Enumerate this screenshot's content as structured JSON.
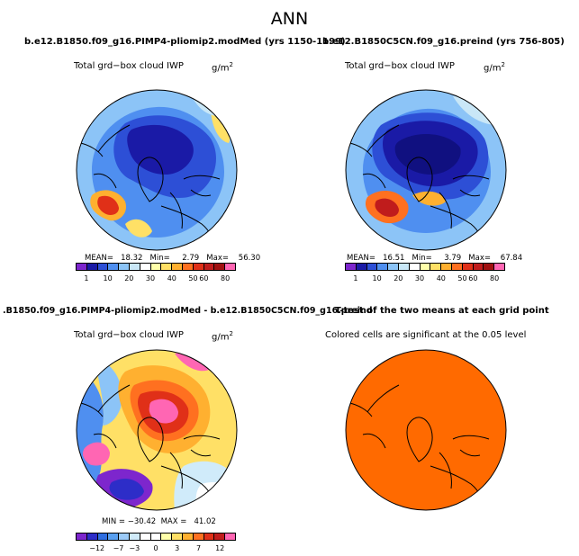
{
  "title": "ANN",
  "colors": {
    "continent_outline": "#000000",
    "significance_fill": "#ff6a00"
  },
  "panels": {
    "top_left": {
      "title": "b.e12.B1850.f09_g16.PIMP4-pliomip2.modMed (yrs 1150-1199)",
      "field": "Total grd−box cloud IWP",
      "units": "g/m",
      "units_exp": "2",
      "stats": "MEAN=   18.32   Min=     2.79   Max=    56.30"
    },
    "top_right": {
      "title": "b.e12.B1850C5CN.f09_g16.preind (yrs 756-805)",
      "field": "Total grd−box cloud IWP",
      "units": "g/m",
      "units_exp": "2",
      "stats": "MEAN=   16.51   Min=     3.79   Max=    67.84"
    },
    "bottom_left": {
      "title": ".B1850.f09_g16.PIMP4-pliomip2.modMed - b.e12.B1850C5CN.f09_g16.preind",
      "field": "Total grd−box cloud IWP",
      "units": "g/m",
      "units_exp": "2",
      "stats": "MIN = −30.42  MAX =   41.02"
    },
    "bottom_right": {
      "title": "T-test of the two means at each grid point",
      "field": "Colored cells are significant at the 0.05 level"
    }
  },
  "colorbars": {
    "absolute": {
      "colors": [
        "#7d26cd",
        "#1a1aa6",
        "#2d4fd6",
        "#4f8ff0",
        "#8cc4f7",
        "#c9e7f7",
        "#ffffff",
        "#ffffaa",
        "#ffe066",
        "#ffb030",
        "#ff7020",
        "#e03018",
        "#c01c1c",
        "#a01010",
        "#ff66b3"
      ],
      "labels": [
        "1",
        "10",
        "20",
        "30",
        "40",
        "50",
        "60",
        "80"
      ]
    },
    "difference": {
      "colors": [
        "#7d26cd",
        "#2d2dc8",
        "#2f6ee0",
        "#5aa0f0",
        "#9ccaf7",
        "#d0ebfa",
        "#ffffff",
        "#ffffff",
        "#ffffaa",
        "#ffe066",
        "#ffb030",
        "#ff7020",
        "#e03018",
        "#c01c1c",
        "#ff66b3"
      ],
      "labels": [
        "−12",
        "−7",
        "−3",
        "0",
        "3",
        "7",
        "12"
      ]
    }
  },
  "maps": {
    "top_left": {
      "projection": "north-polar-stereographic",
      "variable": "cloud IWP (PIMP4)",
      "fill_level": "low-moderate"
    },
    "top_right": {
      "projection": "north-polar-stereographic",
      "variable": "cloud IWP (preind)",
      "fill_level": "low"
    },
    "bottom_left": {
      "projection": "north-polar-stereographic",
      "variable": "IWP difference",
      "fill_level": "mixed"
    },
    "bottom_right": {
      "projection": "north-polar-stereographic",
      "variable": "significance",
      "fill_level": "all-significant"
    }
  }
}
